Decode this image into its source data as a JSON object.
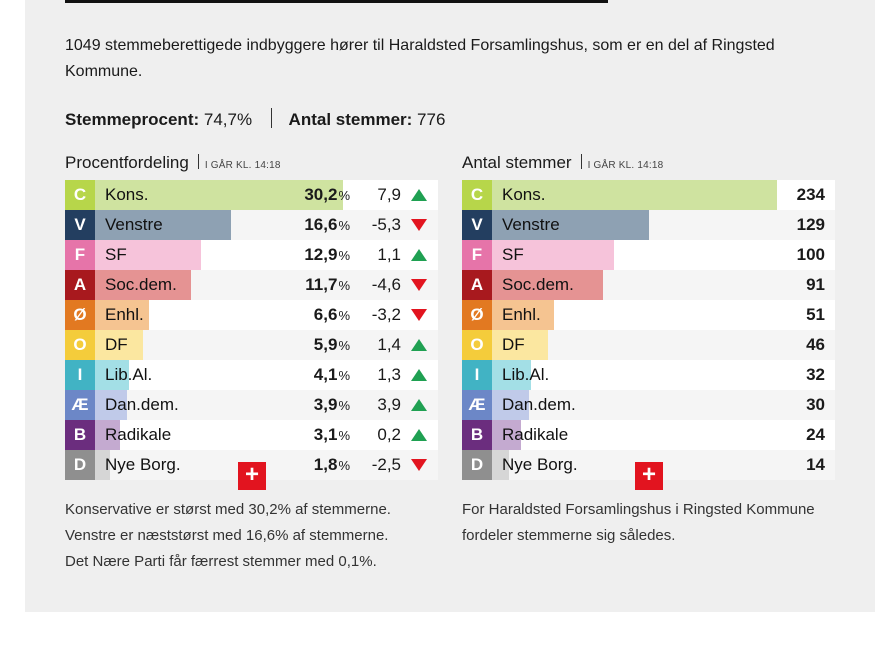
{
  "intro": "1049 stemmeberettigede indbyggere hører til Haraldsted Forsamlingshus, som er en del af Ringsted Kommune.",
  "stats": {
    "turnout_label": "Stemmeprocent:",
    "turnout_value": "74,7%",
    "votes_label": "Antal stemmer:",
    "votes_value": "776"
  },
  "left": {
    "title": "Procentfordeling",
    "time": "I GÅR KL. 14:18",
    "note_lines": [
      "Konservative er størst med 30,2% af stemmerne.",
      "Venstre er næststørst med 16,6% af stemmerne.",
      "Det Nære Parti får færrest stemmer med 0,1%."
    ]
  },
  "right": {
    "title": "Antal stemmer",
    "time": "I GÅR KL. 14:18",
    "note_lines": [
      "For Haraldsted Forsamlingshus i Ringsted Kommune",
      "fordeler stemmerne sig således."
    ]
  },
  "expand_label": "+",
  "pct_unit": "%",
  "chart_data": [
    {
      "type": "bar",
      "title": "Procentfordeling",
      "categories": [
        "C",
        "V",
        "F",
        "A",
        "Ø",
        "O",
        "I",
        "Æ",
        "B",
        "D"
      ],
      "names": [
        "Kons.",
        "Venstre",
        "SF",
        "Soc.dem.",
        "Enhl.",
        "DF",
        "Lib.Al.",
        "Dan.dem.",
        "Radikale",
        "Nye Borg."
      ],
      "values": [
        30.2,
        16.6,
        12.9,
        11.7,
        6.6,
        5.9,
        4.1,
        3.9,
        3.1,
        1.8
      ],
      "value_labels": [
        "30,2",
        "16,6",
        "12,9",
        "11,7",
        "6,6",
        "5,9",
        "4,1",
        "3,9",
        "3,1",
        "1,8"
      ],
      "change": [
        7.9,
        -5.3,
        1.1,
        -4.6,
        -3.2,
        1.4,
        1.3,
        3.9,
        0.2,
        -2.5
      ],
      "change_labels": [
        "7,9",
        "-5,3",
        "1,1",
        "-4,6",
        "-3,2",
        "1,4",
        "1,3",
        "3,9",
        "0,2",
        "-2,5"
      ],
      "colors": [
        "#b7d64a",
        "#233e60",
        "#e674a9",
        "#a8191e",
        "#e27921",
        "#f4cc3b",
        "#41b3c4",
        "#6c87c7",
        "#6b2d7e",
        "#8f8f8f"
      ],
      "bar_colors": [
        "#cfe3a0",
        "#8ea1b3",
        "#f6c3da",
        "#e59393",
        "#f5c491",
        "#fbe7a0",
        "#a3dfe6",
        "#c0cae9",
        "#c4aad0",
        "#d6d6d6"
      ]
    },
    {
      "type": "bar",
      "title": "Antal stemmer",
      "categories": [
        "C",
        "V",
        "F",
        "A",
        "Ø",
        "O",
        "I",
        "Æ",
        "B",
        "D"
      ],
      "names": [
        "Kons.",
        "Venstre",
        "SF",
        "Soc.dem.",
        "Enhl.",
        "DF",
        "Lib.Al.",
        "Dan.dem.",
        "Radikale",
        "Nye Borg."
      ],
      "values": [
        234,
        129,
        100,
        91,
        51,
        46,
        32,
        30,
        24,
        14
      ],
      "colors": [
        "#b7d64a",
        "#233e60",
        "#e674a9",
        "#a8191e",
        "#e27921",
        "#f4cc3b",
        "#41b3c4",
        "#6c87c7",
        "#6b2d7e",
        "#8f8f8f"
      ],
      "bar_colors": [
        "#cfe3a0",
        "#8ea1b3",
        "#f6c3da",
        "#e59393",
        "#f5c491",
        "#fbe7a0",
        "#a3dfe6",
        "#c0cae9",
        "#c4aad0",
        "#d6d6d6"
      ]
    }
  ]
}
